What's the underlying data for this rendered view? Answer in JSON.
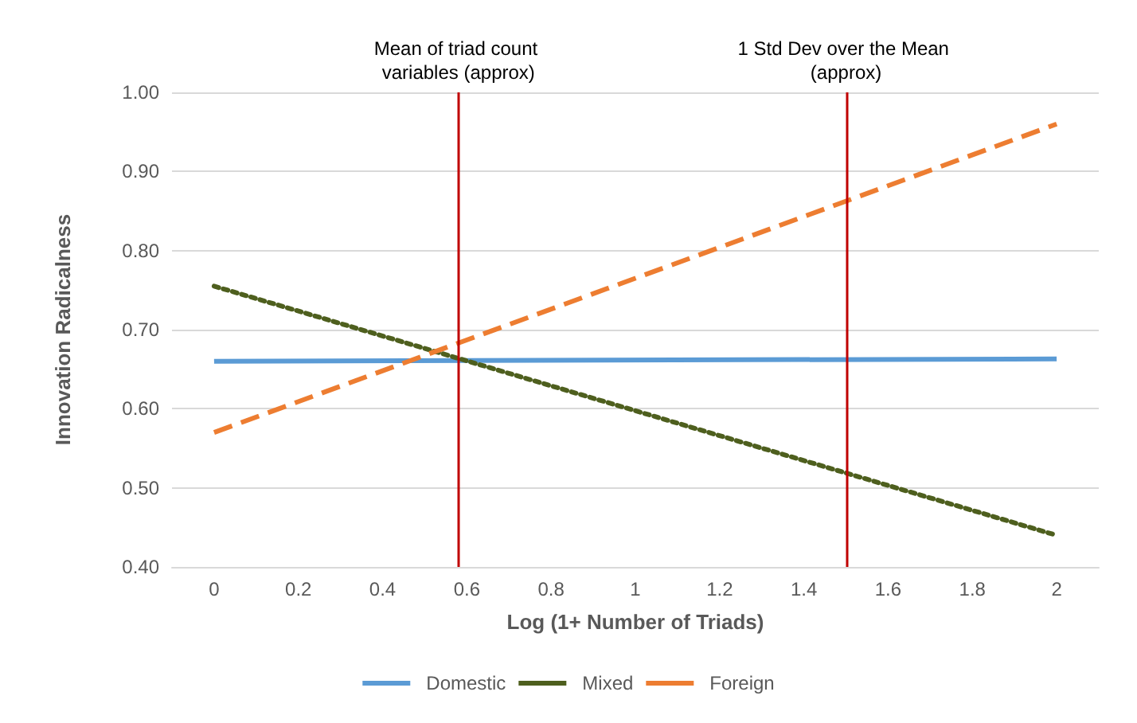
{
  "chart_data": {
    "type": "line",
    "xlabel": "Log (1+ Number of Triads)",
    "ylabel": "Innovation Radicalness",
    "xlim": [
      -0.1,
      2.1
    ],
    "xticks": [
      0,
      0.2,
      0.4,
      0.6,
      0.8,
      1,
      1.2,
      1.4,
      1.6,
      1.8,
      2
    ],
    "ylim": [
      0.4,
      1.0
    ],
    "yticks": [
      {
        "value": 0.4,
        "label": "0.40"
      },
      {
        "value": 0.5,
        "label": "0.50"
      },
      {
        "value": 0.6,
        "label": "0.60"
      },
      {
        "value": 0.7,
        "label": "0.70"
      },
      {
        "value": 0.8,
        "label": "0.80"
      },
      {
        "value": 0.9,
        "label": "0.90"
      },
      {
        "value": 1.0,
        "label": "1.00"
      }
    ],
    "x": [
      0,
      2
    ],
    "series": [
      {
        "name": "Domestic",
        "color": "#5b9bd5",
        "values": [
          0.66,
          0.663
        ],
        "line_style": "solid"
      },
      {
        "name": "Mixed",
        "color": "#4e5f1e",
        "values": [
          0.755,
          0.44
        ],
        "line_style": "dotted"
      },
      {
        "name": "Foreign",
        "color": "#ed7d31",
        "values": [
          0.57,
          0.96
        ],
        "line_style": "dashed"
      }
    ],
    "ref_lines": [
      {
        "axis": "x",
        "value": 0.58,
        "label": "Mean of triad count variables (approx)",
        "color": "#c00000"
      },
      {
        "axis": "x",
        "value": 1.5,
        "label": "1 Std Dev over the Mean (approx)",
        "color": "#c00000"
      }
    ],
    "grid": "y",
    "legend": "bottom",
    "marker": "none"
  }
}
